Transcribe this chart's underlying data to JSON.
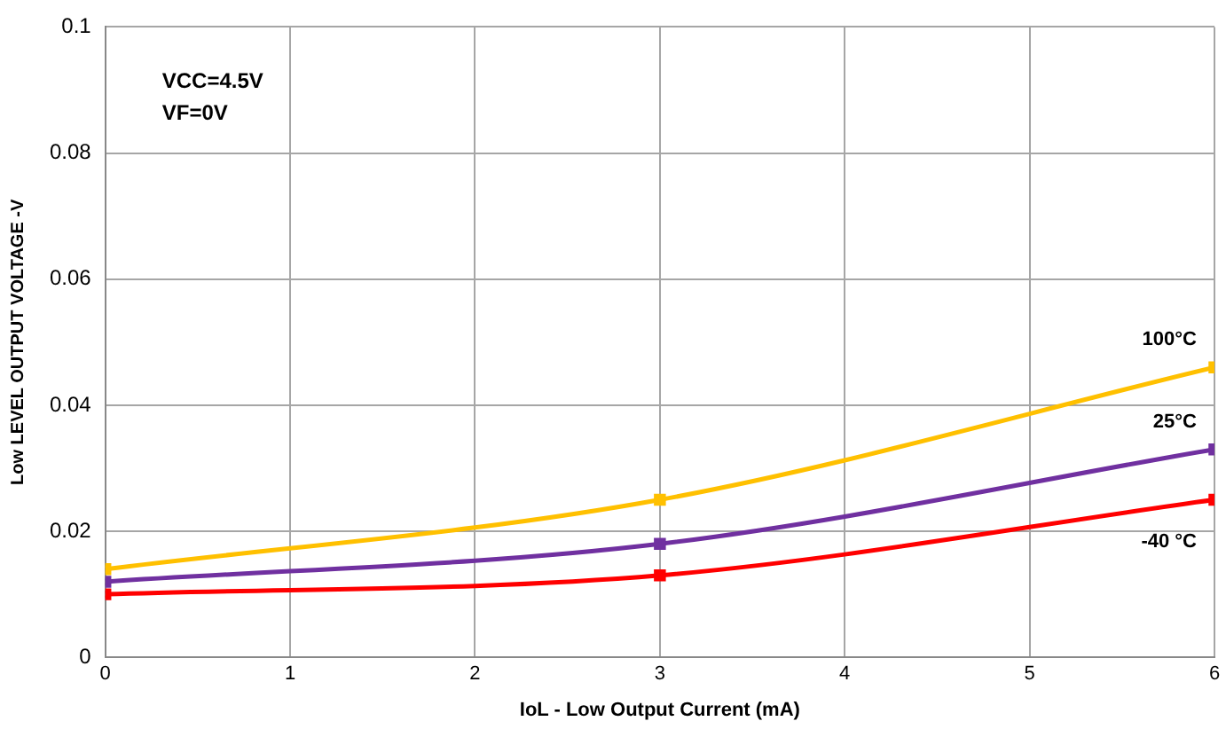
{
  "chart_data": {
    "type": "line",
    "xlabel": "IoL - Low Output Current (mA)",
    "ylabel": "Low LEVEL OUTPUT VOLTAGE -V",
    "x": [
      0,
      3,
      6
    ],
    "series": [
      {
        "name": "100°C",
        "color": "#ffc000",
        "values": [
          0.014,
          0.025,
          0.046
        ]
      },
      {
        "name": "25°C",
        "color": "#7030a0",
        "values": [
          0.012,
          0.018,
          0.033
        ]
      },
      {
        "name": "-40 °C",
        "color": "#ff0000",
        "values": [
          0.01,
          0.013,
          0.025
        ]
      }
    ],
    "xlim": [
      0,
      6
    ],
    "xticks": [
      0,
      1,
      2,
      3,
      4,
      5,
      6
    ],
    "ylim": [
      0,
      0.1
    ],
    "yticks": [
      0,
      0.02,
      0.04,
      0.06,
      0.08,
      0.1
    ],
    "grid": true,
    "legend": false,
    "marker": "square",
    "line_style": "solid",
    "annotations": [
      "VCC=4.5V",
      "VF=0V"
    ]
  }
}
